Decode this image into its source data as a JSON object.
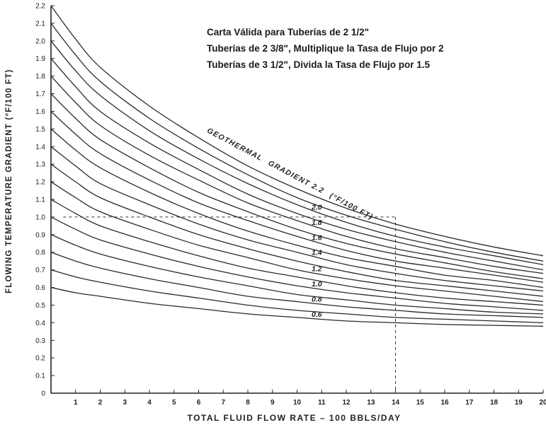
{
  "notes": [
    "Carta Válida para Tuberías de 2 1/2\"",
    "Tuberías de 2 3/8\", Multiplique la Tasa de Flujo por 2",
    "Tuberías de 3 1/2\", Divida la Tasa de Flujo por 1.5"
  ],
  "curve_title": {
    "part1": "GEOTHERMAL",
    "part2": "GRADIENT 2.2",
    "part3": "(°F/100 FT)"
  },
  "chart_data": {
    "type": "line",
    "title": "",
    "xlabel": "TOTAL FLUID FLOW RATE – 100 BBLS/DAY",
    "ylabel": "FLOWING TEMPERATURE GRADIENT (°F/100 FT)",
    "xlim": [
      0,
      20
    ],
    "ylim": [
      0,
      2.2
    ],
    "x_ticks": [
      "1",
      "2",
      "3",
      "4",
      "5",
      "6",
      "7",
      "8",
      "9",
      "10",
      "11",
      "12",
      "13",
      "14",
      "15",
      "16",
      "17",
      "18",
      "19",
      "20"
    ],
    "y_ticks": [
      "0",
      "0.1",
      "0.2",
      "0.3",
      "0.4",
      "0.5",
      "0.6",
      "0.7",
      "0.8",
      "0.9",
      "1.0",
      "1.1",
      "1.2",
      "1.3",
      "1.4",
      "1.5",
      "1.6",
      "1.7",
      "1.8",
      "1.9",
      "2.0",
      "2.1",
      "2.2"
    ],
    "x": [
      0,
      1,
      2,
      4,
      6,
      8,
      10,
      12,
      14,
      16,
      18,
      20
    ],
    "series": [
      {
        "label": "0.6",
        "values": [
          0.6,
          0.57,
          0.55,
          0.51,
          0.48,
          0.45,
          0.43,
          0.41,
          0.4,
          0.39,
          0.385,
          0.38
        ]
      },
      {
        "label": "",
        "values": [
          0.7,
          0.66,
          0.63,
          0.58,
          0.54,
          0.5,
          0.47,
          0.45,
          0.43,
          0.42,
          0.41,
          0.4
        ]
      },
      {
        "label": "0.8",
        "values": [
          0.8,
          0.75,
          0.71,
          0.65,
          0.6,
          0.55,
          0.52,
          0.49,
          0.47,
          0.45,
          0.44,
          0.43
        ]
      },
      {
        "label": "",
        "values": [
          0.9,
          0.84,
          0.79,
          0.72,
          0.66,
          0.61,
          0.56,
          0.53,
          0.5,
          0.48,
          0.46,
          0.45
        ]
      },
      {
        "label": "1.0",
        "values": [
          1.0,
          0.93,
          0.87,
          0.79,
          0.72,
          0.66,
          0.61,
          0.57,
          0.54,
          0.51,
          0.49,
          0.47
        ]
      },
      {
        "label": "",
        "values": [
          1.1,
          1.02,
          0.95,
          0.86,
          0.78,
          0.71,
          0.66,
          0.61,
          0.57,
          0.54,
          0.52,
          0.5
        ]
      },
      {
        "label": "1.2",
        "values": [
          1.2,
          1.11,
          1.03,
          0.93,
          0.84,
          0.77,
          0.7,
          0.65,
          0.61,
          0.58,
          0.55,
          0.52
        ]
      },
      {
        "label": "",
        "values": [
          1.3,
          1.2,
          1.11,
          1.0,
          0.9,
          0.82,
          0.75,
          0.69,
          0.64,
          0.61,
          0.58,
          0.55
        ]
      },
      {
        "label": "1.4",
        "values": [
          1.4,
          1.29,
          1.19,
          1.07,
          0.96,
          0.87,
          0.8,
          0.73,
          0.68,
          0.64,
          0.61,
          0.58
        ]
      },
      {
        "label": "",
        "values": [
          1.5,
          1.38,
          1.28,
          1.14,
          1.02,
          0.92,
          0.84,
          0.77,
          0.72,
          0.67,
          0.64,
          0.6
        ]
      },
      {
        "label": "1.6",
        "values": [
          1.6,
          1.47,
          1.36,
          1.21,
          1.08,
          0.98,
          0.89,
          0.81,
          0.75,
          0.71,
          0.67,
          0.63
        ]
      },
      {
        "label": "",
        "values": [
          1.7,
          1.56,
          1.44,
          1.28,
          1.14,
          1.03,
          0.93,
          0.85,
          0.79,
          0.74,
          0.69,
          0.65
        ]
      },
      {
        "label": "1.8",
        "values": [
          1.8,
          1.65,
          1.52,
          1.35,
          1.21,
          1.08,
          0.98,
          0.89,
          0.82,
          0.77,
          0.72,
          0.68
        ]
      },
      {
        "label": "",
        "values": [
          1.9,
          1.74,
          1.6,
          1.42,
          1.27,
          1.13,
          1.02,
          0.93,
          0.86,
          0.8,
          0.75,
          0.7
        ]
      },
      {
        "label": "2.0",
        "values": [
          2.0,
          1.83,
          1.69,
          1.49,
          1.33,
          1.19,
          1.07,
          0.97,
          0.89,
          0.83,
          0.78,
          0.73
        ]
      },
      {
        "label": "",
        "values": [
          2.1,
          1.92,
          1.77,
          1.56,
          1.39,
          1.24,
          1.11,
          1.01,
          0.93,
          0.86,
          0.8,
          0.75
        ]
      },
      {
        "label": "",
        "values": [
          2.2,
          2.01,
          1.85,
          1.63,
          1.45,
          1.29,
          1.16,
          1.05,
          0.96,
          0.89,
          0.83,
          0.78
        ]
      }
    ],
    "reference_lines": {
      "horizontal_y": 1.0,
      "vertical_x": 14
    },
    "grid": false,
    "legend": "none"
  }
}
